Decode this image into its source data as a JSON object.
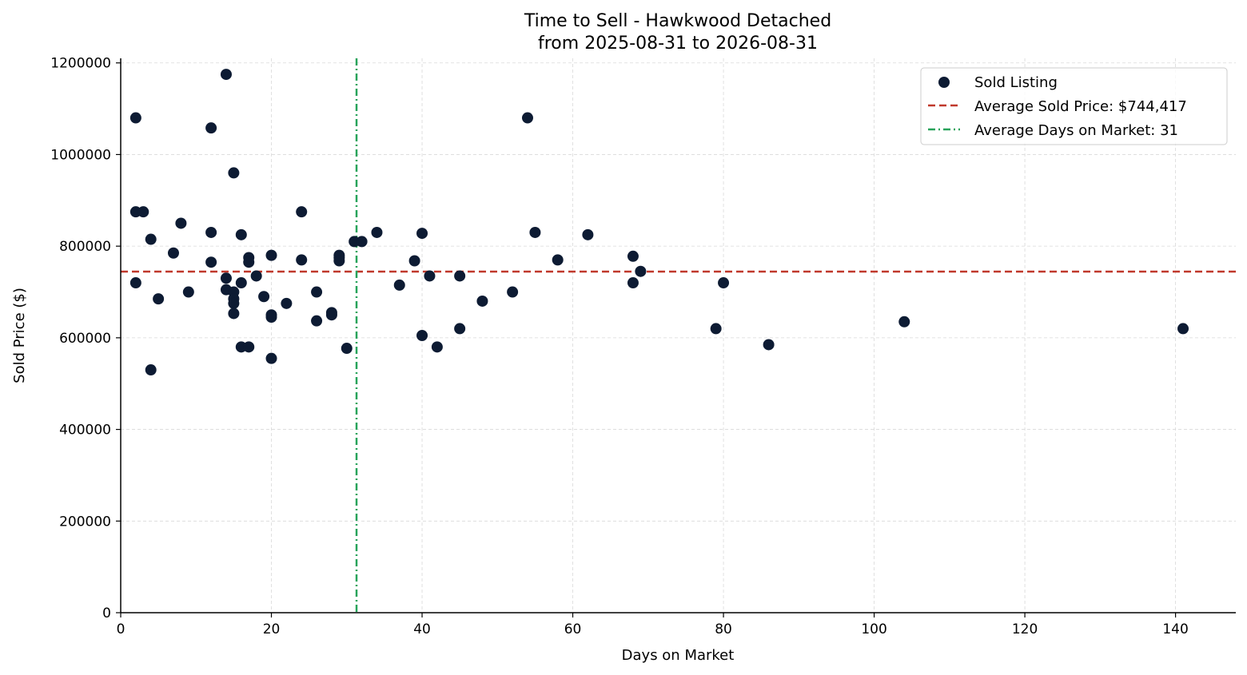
{
  "chart_data": {
    "type": "scatter",
    "title_line1": "Time to Sell - Hawkwood Detached",
    "title_line2": "from 2025-08-31 to 2026-08-31",
    "xlabel": "Days on Market",
    "ylabel": "Sold Price ($)",
    "xlim": [
      0,
      148
    ],
    "ylim": [
      0,
      1210000
    ],
    "x_ticks": [
      0,
      20,
      40,
      60,
      80,
      100,
      120,
      140
    ],
    "y_ticks": [
      0,
      200000,
      400000,
      600000,
      800000,
      1000000,
      1200000
    ],
    "grid": true,
    "legend_position": "top-right",
    "colors": {
      "points": "#0d1b33",
      "avg_price_line": "#c0392b",
      "avg_days_line": "#27a35a"
    },
    "series": [
      {
        "name": "Sold Listing",
        "points": [
          [
            2,
            1080000
          ],
          [
            2,
            875000
          ],
          [
            2,
            720000
          ],
          [
            3,
            875000
          ],
          [
            4,
            815000
          ],
          [
            4,
            530000
          ],
          [
            5,
            685000
          ],
          [
            7,
            785000
          ],
          [
            8,
            850000
          ],
          [
            9,
            700000
          ],
          [
            12,
            1058000
          ],
          [
            12,
            830000
          ],
          [
            12,
            765000
          ],
          [
            14,
            1175000
          ],
          [
            14,
            730000
          ],
          [
            14,
            705000
          ],
          [
            15,
            960000
          ],
          [
            15,
            700000
          ],
          [
            15,
            685000
          ],
          [
            15,
            675000
          ],
          [
            15,
            653000
          ],
          [
            16,
            825000
          ],
          [
            16,
            720000
          ],
          [
            16,
            580000
          ],
          [
            17,
            775000
          ],
          [
            17,
            765000
          ],
          [
            17,
            580000
          ],
          [
            18,
            735000
          ],
          [
            19,
            690000
          ],
          [
            20,
            780000
          ],
          [
            20,
            650000
          ],
          [
            20,
            645000
          ],
          [
            20,
            555000
          ],
          [
            22,
            675000
          ],
          [
            24,
            875000
          ],
          [
            24,
            770000
          ],
          [
            26,
            700000
          ],
          [
            26,
            637000
          ],
          [
            28,
            655000
          ],
          [
            28,
            650000
          ],
          [
            29,
            780000
          ],
          [
            29,
            775000
          ],
          [
            29,
            768000
          ],
          [
            30,
            577000
          ],
          [
            31,
            810000
          ],
          [
            32,
            810000
          ],
          [
            34,
            830000
          ],
          [
            37,
            715000
          ],
          [
            39,
            768000
          ],
          [
            40,
            828000
          ],
          [
            40,
            605000
          ],
          [
            41,
            735000
          ],
          [
            42,
            580000
          ],
          [
            45,
            735000
          ],
          [
            45,
            620000
          ],
          [
            48,
            680000
          ],
          [
            52,
            700000
          ],
          [
            54,
            1080000
          ],
          [
            55,
            830000
          ],
          [
            58,
            770000
          ],
          [
            62,
            825000
          ],
          [
            68,
            778000
          ],
          [
            68,
            720000
          ],
          [
            69,
            745000
          ],
          [
            79,
            620000
          ],
          [
            80,
            720000
          ],
          [
            86,
            585000
          ],
          [
            104,
            635000
          ],
          [
            141,
            620000
          ]
        ]
      }
    ],
    "avg_price": 744417,
    "avg_days": 31.3,
    "legend": {
      "scatter_label": "Sold Listing",
      "price_label": "Average Sold Price: $744,417",
      "days_label": "Average Days on Market: 31"
    }
  }
}
